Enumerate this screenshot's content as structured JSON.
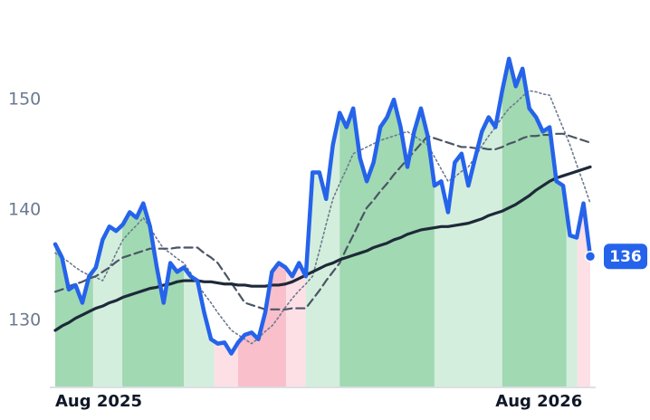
{
  "chart_data": {
    "type": "line",
    "xlim": [
      0,
      79
    ],
    "xticks": [
      {
        "value": 0,
        "label": "Aug 2025"
      },
      {
        "value": 65,
        "label": "Aug 2026"
      }
    ],
    "ylim": [
      124,
      156
    ],
    "yticks": [
      130,
      140,
      150
    ],
    "bands": [
      {
        "from": 0,
        "to": 5.6,
        "color": "#a1d9b2"
      },
      {
        "from": 5.6,
        "to": 9.9,
        "color": "#d4eedd"
      },
      {
        "from": 9.9,
        "to": 19,
        "color": "#a1d9b2"
      },
      {
        "from": 19,
        "to": 23.5,
        "color": "#d4eedd"
      },
      {
        "from": 23.5,
        "to": 27,
        "color": "#fde0e5"
      },
      {
        "from": 27,
        "to": 34.1,
        "color": "#f9bfca"
      },
      {
        "from": 34.1,
        "to": 37,
        "color": "#fde0e5"
      },
      {
        "from": 37,
        "to": 42,
        "color": "#d4eedd"
      },
      {
        "from": 42,
        "to": 56,
        "color": "#a1d9b2"
      },
      {
        "from": 56,
        "to": 66,
        "color": "#d4eedd"
      },
      {
        "from": 66,
        "to": 75.5,
        "color": "#a1d9b2"
      },
      {
        "from": 75.5,
        "to": 77.1,
        "color": "#d4eedd"
      },
      {
        "from": 77.1,
        "to": 79,
        "color": "#fde0e5"
      }
    ],
    "series": [
      {
        "color": "#2563eb",
        "style": "solid",
        "values": [
          136.9,
          135.7,
          132.8,
          133.2,
          131.6,
          134.0,
          134.8,
          137.3,
          138.5,
          138.1,
          138.7,
          139.8,
          139.3,
          140.6,
          138.5,
          134.8,
          131.6,
          135.2,
          134.4,
          134.8,
          134.0,
          133.6,
          130.7,
          128.3,
          127.9,
          128.0,
          127.0,
          128.0,
          128.7,
          128.9,
          128.3,
          130.7,
          134.4,
          135.2,
          134.8,
          134.0,
          135.2,
          134.0,
          143.4,
          143.4,
          141.0,
          145.9,
          148.8,
          147.5,
          149.2,
          144.7,
          142.6,
          144.3,
          147.5,
          148.4,
          150.0,
          147.5,
          143.9,
          147.1,
          149.2,
          146.7,
          142.2,
          142.6,
          139.8,
          144.3,
          145.1,
          142.2,
          144.7,
          147.1,
          148.4,
          147.5,
          150.8,
          153.7,
          151.2,
          152.8,
          149.2,
          148.4,
          147.1,
          147.5,
          142.6,
          142.2,
          137.7,
          137.5,
          140.6,
          135.8
        ],
        "value_labels": [
          null,
          null,
          null,
          null,
          null,
          null,
          null,
          null,
          null,
          null,
          null,
          null,
          null,
          null,
          null,
          null,
          null,
          null,
          null,
          null,
          null,
          null,
          null,
          null,
          null,
          null,
          null,
          null,
          null,
          null,
          null,
          null,
          null,
          null,
          null,
          null,
          null,
          null,
          null,
          null,
          null,
          null,
          null,
          null,
          null,
          null,
          null,
          null,
          null,
          null,
          null,
          null,
          null,
          null,
          null,
          null,
          null,
          null,
          null,
          null,
          null,
          null,
          null,
          null,
          null,
          null,
          null,
          null,
          null,
          null,
          null,
          null,
          null,
          null,
          null,
          null,
          null,
          null,
          null,
          "136"
        ]
      },
      {
        "color": "#6b7a90",
        "style": "dotted",
        "values": [
          136.1,
          135.7,
          135.3,
          134.8,
          134.4,
          134.1,
          133.9,
          133.6,
          134.8,
          136.1,
          137.3,
          138.0,
          138.6,
          139.3,
          138.4,
          137.4,
          136.5,
          136.1,
          135.6,
          135.2,
          134.3,
          133.3,
          132.4,
          131.6,
          130.7,
          129.9,
          129.1,
          128.7,
          128.3,
          127.9,
          128.4,
          129.0,
          129.5,
          130.3,
          131.2,
          132.0,
          132.7,
          133.3,
          134.0,
          136.3,
          138.7,
          141.0,
          142.4,
          143.7,
          145.1,
          145.4,
          145.7,
          146.0,
          146.3,
          146.5,
          146.7,
          146.9,
          147.1,
          146.7,
          146.3,
          145.9,
          144.8,
          143.7,
          142.6,
          143.0,
          143.5,
          143.9,
          144.8,
          145.8,
          146.7,
          147.5,
          148.4,
          149.2,
          149.7,
          150.3,
          150.8,
          150.7,
          150.5,
          150.4,
          148.9,
          147.4,
          145.9,
          144.1,
          142.4,
          140.6
        ]
      },
      {
        "color": "#4a5565",
        "style": "dashed",
        "values": [
          132.6,
          132.8,
          133.1,
          133.3,
          133.5,
          133.8,
          134.0,
          134.4,
          134.8,
          135.3,
          135.7,
          135.9,
          136.1,
          136.3,
          136.5,
          136.5,
          136.5,
          136.5,
          136.6,
          136.6,
          136.6,
          136.6,
          136.1,
          135.7,
          135.2,
          134.3,
          133.4,
          132.5,
          131.6,
          131.4,
          131.2,
          131.0,
          131.0,
          131.0,
          131.0,
          131.1,
          131.1,
          131.1,
          131.9,
          132.7,
          133.6,
          134.4,
          135.2,
          136.5,
          137.7,
          139.0,
          140.2,
          140.9,
          141.7,
          142.4,
          143.2,
          143.9,
          144.6,
          145.3,
          146.0,
          146.7,
          146.5,
          146.3,
          146.1,
          145.9,
          145.7,
          145.7,
          145.6,
          145.6,
          145.5,
          145.5,
          145.7,
          146.0,
          146.2,
          146.5,
          146.7,
          146.7,
          146.8,
          146.8,
          146.9,
          146.9,
          146.7,
          146.5,
          146.3,
          146.1
        ]
      },
      {
        "color": "#1e2939",
        "style": "solid",
        "values": [
          129.1,
          129.5,
          129.8,
          130.2,
          130.5,
          130.8,
          131.1,
          131.3,
          131.6,
          131.8,
          132.1,
          132.3,
          132.5,
          132.7,
          132.9,
          133.0,
          133.2,
          133.3,
          133.5,
          133.6,
          133.6,
          133.6,
          133.5,
          133.5,
          133.4,
          133.3,
          133.3,
          133.2,
          133.2,
          133.1,
          133.1,
          133.1,
          133.2,
          133.2,
          133.3,
          133.5,
          133.8,
          134.1,
          134.4,
          134.7,
          135.0,
          135.2,
          135.5,
          135.7,
          135.9,
          136.1,
          136.3,
          136.6,
          136.8,
          137.0,
          137.3,
          137.5,
          137.8,
          138.0,
          138.2,
          138.3,
          138.4,
          138.5,
          138.5,
          138.6,
          138.7,
          138.8,
          139.0,
          139.2,
          139.5,
          139.7,
          139.9,
          140.2,
          140.5,
          140.9,
          141.3,
          141.8,
          142.2,
          142.6,
          142.9,
          143.1,
          143.3,
          143.5,
          143.7,
          143.9
        ]
      }
    ]
  }
}
